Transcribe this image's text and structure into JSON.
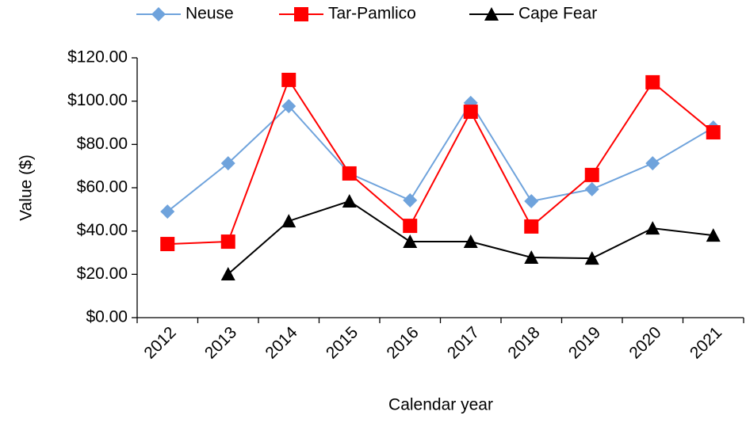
{
  "chart_data": {
    "type": "line",
    "x_label": "Calendar year",
    "y_label": "Value ($)",
    "categories": [
      "2012",
      "2013",
      "2014",
      "2015",
      "2016",
      "2017",
      "2018",
      "2019",
      "2020",
      "2021"
    ],
    "series": [
      {
        "name": "Neuse",
        "color": "#6fa3dc",
        "marker": "diamond",
        "values": [
          49,
          71.3,
          97.7,
          66.6,
          54.2,
          99.2,
          53.8,
          59.3,
          71.3,
          87.8
        ]
      },
      {
        "name": "Tar-Pamlico",
        "color": "#ff0000",
        "marker": "square",
        "values": [
          34,
          35.1,
          109.8,
          66.6,
          42.4,
          95.1,
          42.1,
          65.9,
          108.7,
          85.6
        ]
      },
      {
        "name": "Cape Fear",
        "color": "#000000",
        "marker": "triangle",
        "values": [
          null,
          20.1,
          44.6,
          53.8,
          35.1,
          35.1,
          27.8,
          27.4,
          41.3,
          38
        ]
      }
    ],
    "ylim": [
      0,
      120
    ],
    "yticks": [
      {
        "value": 0,
        "label": "$0.00"
      },
      {
        "value": 20,
        "label": "$20.00"
      },
      {
        "value": 40,
        "label": "$40.00"
      },
      {
        "value": 60,
        "label": "$60.00"
      },
      {
        "value": 80,
        "label": "$80.00"
      },
      {
        "value": 100,
        "label": "$100.00"
      },
      {
        "value": 120,
        "label": "$120.00"
      }
    ],
    "grid": false,
    "legend": "top"
  }
}
